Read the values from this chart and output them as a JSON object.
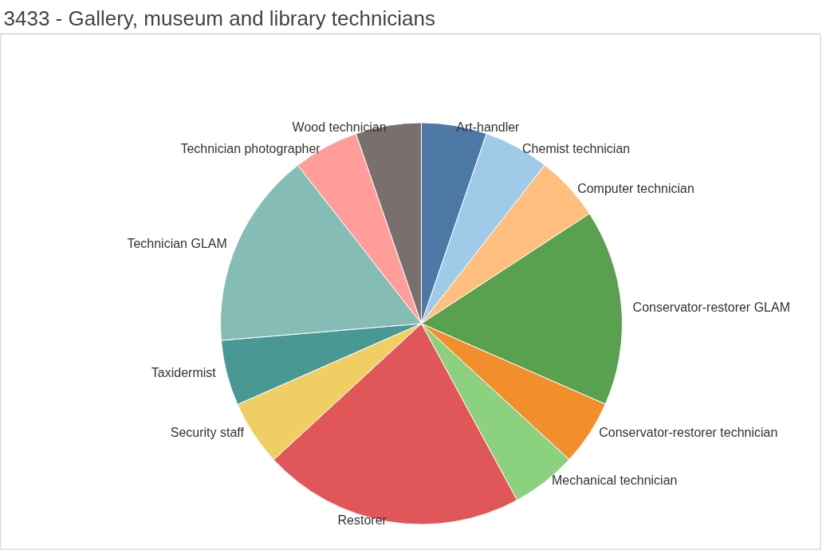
{
  "chart_data": {
    "type": "pie",
    "title": "3433 - Gallery, museum and library technicians",
    "categories": [
      "Art-handler",
      "Chemist technician",
      "Computer technician",
      "Conservator-restorer GLAM",
      "Conservator-restorer technician",
      "Mechanical technician",
      "Restorer",
      "Security staff",
      "Taxidermist",
      "Technician GLAM",
      "Technician photographer",
      "Wood technician"
    ],
    "values": [
      5.26,
      5.26,
      5.26,
      15.79,
      5.26,
      5.26,
      21.05,
      5.26,
      5.26,
      15.79,
      5.26,
      5.28
    ],
    "colors": [
      "#4e79a7",
      "#a0cbe8",
      "#ffbe7d",
      "#59a14f",
      "#f28e2b",
      "#8cd17d",
      "#e15759",
      "#f1ce63",
      "#499894",
      "#86bcb6",
      "#ff9d9a",
      "#79706e"
    ]
  }
}
